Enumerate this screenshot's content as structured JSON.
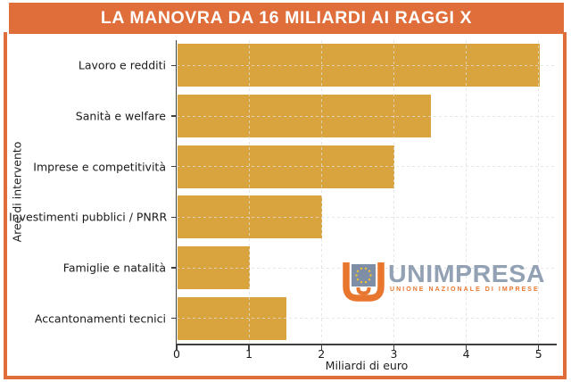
{
  "banner": {
    "title": "LA MANOVRA DA 16 MILIARDI AI RAGGI X"
  },
  "chart_data": {
    "type": "bar",
    "orientation": "horizontal",
    "title": "LA MANOVRA DA 16 MILIARDI AI RAGGI X",
    "categories": [
      "Lavoro e redditi",
      "Sanità e welfare",
      "Imprese e competitività",
      "Investimenti pubblici / PNRR",
      "Famiglie e natalità",
      "Accantonamenti tecnici"
    ],
    "values": [
      5.0,
      3.5,
      3.0,
      2.0,
      1.0,
      1.5
    ],
    "xlabel": "Miliardi di euro",
    "ylabel": "Aree di intervento",
    "xlim": [
      0,
      5.25
    ],
    "xticks": [
      "0",
      "1",
      "2",
      "3",
      "4",
      "5"
    ],
    "grid": true,
    "legend": false
  },
  "colors": {
    "accent": "#e06e3a",
    "bar": "#d9a43e",
    "spine": "#3f3f3f",
    "grid": "#dddddd",
    "logo_slate": "#93a1b5",
    "logo_orange": "#e8762e",
    "star_yellow": "#f2c230",
    "eu_square": "#7e8ea6"
  },
  "logo": {
    "name": "UNIMPRESA",
    "tagline": "UNIONE NAZIONALE DI IMPRESE"
  }
}
